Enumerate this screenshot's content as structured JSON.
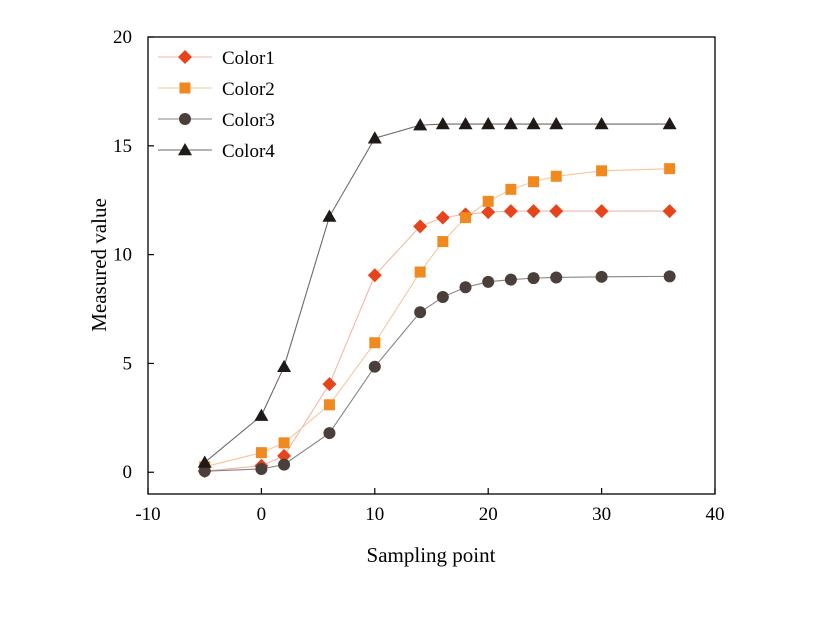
{
  "chart_data": {
    "type": "line",
    "title": "",
    "xlabel": "Sampling point",
    "ylabel": "Measured value",
    "xlim": [
      -10,
      40
    ],
    "ylim": [
      -1,
      20
    ],
    "xticks": [
      -10,
      0,
      10,
      20,
      30,
      40
    ],
    "yticks": [
      0,
      5,
      10,
      15,
      20
    ],
    "grid": false,
    "legend_position": "top-left",
    "x": [
      -5,
      0,
      2,
      6,
      10,
      14,
      16,
      18,
      20,
      22,
      24,
      26,
      30,
      36
    ],
    "series": [
      {
        "name": "Color1",
        "marker": "diamond",
        "color": "#e8441c",
        "line_color": "#f2b8a8",
        "values": [
          0.05,
          0.3,
          0.75,
          4.05,
          9.05,
          11.3,
          11.7,
          11.85,
          11.95,
          12.0,
          12.0,
          12.0,
          12.0,
          12.0
        ]
      },
      {
        "name": "Color2",
        "marker": "square",
        "color": "#f08a1e",
        "line_color": "#f5c79c",
        "values": [
          0.25,
          0.9,
          1.35,
          3.1,
          5.95,
          9.2,
          10.6,
          11.7,
          12.45,
          13.0,
          13.35,
          13.6,
          13.85,
          13.95
        ]
      },
      {
        "name": "Color3",
        "marker": "circle",
        "color": "#4a3f3a",
        "line_color": "#8a8480",
        "values": [
          0.05,
          0.15,
          0.35,
          1.8,
          4.85,
          7.35,
          8.05,
          8.5,
          8.75,
          8.85,
          8.92,
          8.95,
          8.98,
          9.0
        ]
      },
      {
        "name": "Color4",
        "marker": "triangle",
        "color": "#1f1a17",
        "line_color": "#6e6a67",
        "values": [
          0.45,
          2.6,
          4.85,
          11.75,
          15.35,
          15.95,
          16.0,
          16.0,
          16.0,
          16.0,
          16.0,
          16.0,
          16.0,
          16.0
        ]
      }
    ]
  }
}
